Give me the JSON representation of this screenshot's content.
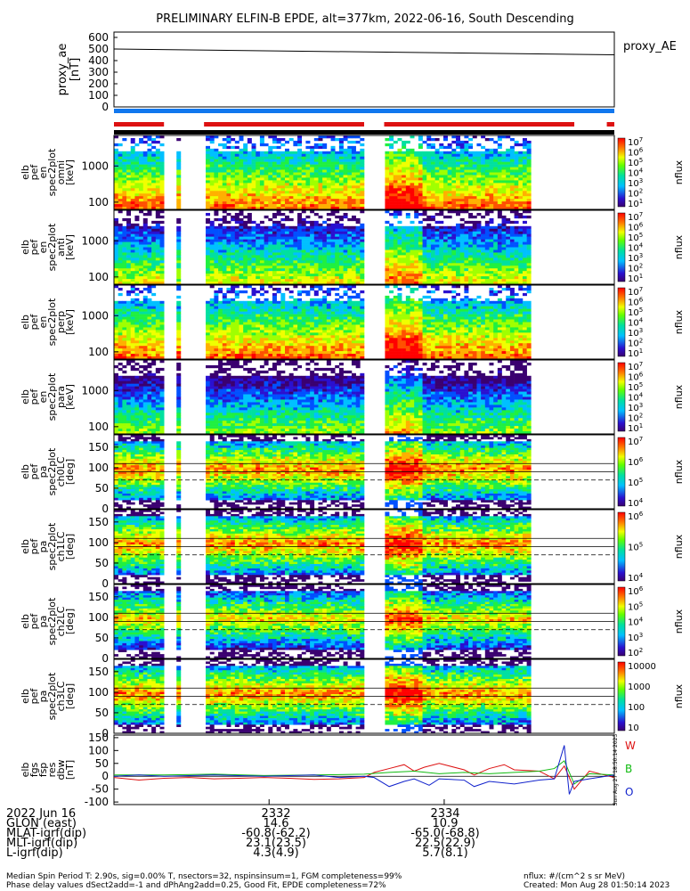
{
  "title": "PRELIMINARY ELFIN-B EPDE, alt=377km, 2022-06-16, South Descending",
  "colors": {
    "red": "#dd1111",
    "blue": "#1177ee",
    "green": "#11bb11",
    "black": "#000000"
  },
  "chart_data": [
    {
      "type": "line",
      "name": "proxy_ae",
      "ylabel": [
        "proxy_ae",
        "[nT]"
      ],
      "ylim": [
        0,
        600
      ],
      "yticks": [
        "0",
        "100",
        "200",
        "300",
        "400",
        "500",
        "600"
      ],
      "series": [
        {
          "name": "proxy_AE",
          "x": [
            0,
            1
          ],
          "values": [
            500,
            450
          ]
        }
      ],
      "legend": "proxy_AE"
    },
    {
      "type": "bar",
      "name": "data-coverage-bars",
      "categories": [
        "red-1",
        "red-2",
        "red-3",
        "red-4"
      ],
      "segments": {
        "red": [
          [
            0.0,
            0.1
          ],
          [
            0.18,
            0.5
          ],
          [
            0.54,
            0.92
          ],
          [
            0.985,
            1.0
          ]
        ],
        "blue": [
          [
            0.0,
            1.0
          ]
        ]
      }
    },
    {
      "type": "heatmap",
      "name": "elb pef en spec2plot omni",
      "ylabel": [
        "elb",
        "pef",
        "en",
        "spec2plot",
        "omni",
        "[keV]"
      ],
      "yticks": [
        "1000",
        "100"
      ],
      "ylim": [
        63,
        7000
      ],
      "zlabel": "nflux",
      "zticks": [
        "10^7",
        "10^6",
        "10^5",
        "10^4",
        "10^3",
        "10^2",
        "10^1"
      ]
    },
    {
      "type": "heatmap",
      "name": "elb pef en spec2plot anti",
      "ylabel": [
        "elb",
        "pef",
        "en",
        "spec2plot",
        "anti",
        "[keV]"
      ],
      "yticks": [
        "1000",
        "100"
      ],
      "ylim": [
        63,
        7000
      ],
      "zlabel": "nflux",
      "zticks": [
        "10^7",
        "10^6",
        "10^5",
        "10^4",
        "10^3",
        "10^2",
        "10^1"
      ]
    },
    {
      "type": "heatmap",
      "name": "elb pef en spec2plot perp",
      "ylabel": [
        "elb",
        "pef",
        "en",
        "spec2plot",
        "perp",
        "[keV]"
      ],
      "yticks": [
        "1000",
        "100"
      ],
      "ylim": [
        63,
        7000
      ],
      "zlabel": "nflux",
      "zticks": [
        "10^7",
        "10^6",
        "10^5",
        "10^4",
        "10^3",
        "10^2",
        "10^1"
      ]
    },
    {
      "type": "heatmap",
      "name": "elb pef en spec2plot para",
      "ylabel": [
        "elb",
        "pef",
        "en",
        "spec2plot",
        "para",
        "[keV]"
      ],
      "yticks": [
        "1000",
        "100"
      ],
      "ylim": [
        63,
        7000
      ],
      "zlabel": "nflux",
      "zticks": [
        "10^7",
        "10^6",
        "10^5",
        "10^4",
        "10^3",
        "10^2",
        "10^1"
      ]
    },
    {
      "type": "heatmap",
      "name": "elb pef pa spec2plot ch0LC",
      "ylabel": [
        "elb",
        "pef",
        "pa",
        "spec2plot",
        "ch0LC",
        "[deg]"
      ],
      "yticks": [
        "150",
        "100",
        "50",
        "0"
      ],
      "ylim": [
        0,
        180
      ],
      "zlabel": "nflux",
      "zticks": [
        "10^7",
        "10^6",
        "10^5",
        "10^4"
      ],
      "lines": [
        110,
        90,
        70
      ]
    },
    {
      "type": "heatmap",
      "name": "elb pef pa spec2plot ch1LC",
      "ylabel": [
        "elb",
        "pef",
        "pa",
        "spec2plot",
        "ch1LC",
        "[deg]"
      ],
      "yticks": [
        "150",
        "100",
        "50",
        "0"
      ],
      "ylim": [
        0,
        180
      ],
      "zlabel": "nflux",
      "zticks": [
        "10^6",
        "10^5",
        "10^4"
      ],
      "lines": [
        110,
        90,
        70
      ]
    },
    {
      "type": "heatmap",
      "name": "elb pef pa spec2plot ch2LC",
      "ylabel": [
        "elb",
        "pef",
        "pa",
        "spec2plot",
        "ch2LC",
        "[deg]"
      ],
      "yticks": [
        "150",
        "100",
        "50",
        "0"
      ],
      "ylim": [
        0,
        180
      ],
      "zlabel": "nflux",
      "zticks": [
        "10^6",
        "10^5",
        "10^4",
        "10^3",
        "10^2"
      ],
      "lines": [
        110,
        90,
        70
      ]
    },
    {
      "type": "heatmap",
      "name": "elb pef pa spec2plot ch3LC",
      "ylabel": [
        "elb",
        "pef",
        "pa",
        "spec2plot",
        "ch3LC",
        "[deg]"
      ],
      "yticks": [
        "150",
        "100",
        "50",
        "0"
      ],
      "ylim": [
        0,
        180
      ],
      "zlabel": "nflux",
      "zticks": [
        "10000",
        "1000",
        "100",
        "10"
      ],
      "lines": [
        110,
        90,
        70
      ]
    },
    {
      "type": "line",
      "name": "elb fgs fsp res dbw",
      "ylabel": [
        "elb",
        "fgs",
        "fsp",
        "res",
        "dbw",
        "[nT]"
      ],
      "ylim": [
        -110,
        160
      ],
      "yticks": [
        "150",
        "100",
        "50",
        "0",
        "-50",
        "-100"
      ],
      "legend": [
        "W",
        "B",
        "O"
      ],
      "series": [
        {
          "name": "W",
          "color": "#dd1111",
          "x": [
            0,
            0.05,
            0.1,
            0.15,
            0.2,
            0.25,
            0.3,
            0.35,
            0.4,
            0.45,
            0.5,
            0.52,
            0.55,
            0.58,
            0.6,
            0.62,
            0.65,
            0.7,
            0.72,
            0.75,
            0.78,
            0.8,
            0.85,
            0.88,
            0.9,
            0.92,
            0.95,
            1.0
          ],
          "values": [
            -5,
            -15,
            -8,
            -5,
            -10,
            -8,
            -5,
            -8,
            -12,
            -10,
            -5,
            15,
            30,
            45,
            20,
            35,
            50,
            25,
            5,
            30,
            45,
            25,
            20,
            -10,
            40,
            -50,
            20,
            -5
          ]
        },
        {
          "name": "B",
          "color": "#11bb11",
          "x": [
            0,
            0.1,
            0.2,
            0.3,
            0.4,
            0.5,
            0.55,
            0.6,
            0.65,
            0.7,
            0.75,
            0.8,
            0.85,
            0.88,
            0.9,
            0.92,
            0.95,
            1.0
          ],
          "values": [
            5,
            5,
            8,
            3,
            5,
            8,
            15,
            20,
            10,
            15,
            10,
            15,
            20,
            30,
            60,
            -30,
            10,
            5
          ]
        },
        {
          "name": "O",
          "color": "#1122cc",
          "x": [
            0,
            0.05,
            0.1,
            0.2,
            0.3,
            0.4,
            0.45,
            0.5,
            0.52,
            0.55,
            0.58,
            0.6,
            0.63,
            0.65,
            0.7,
            0.72,
            0.75,
            0.8,
            0.85,
            0.88,
            0.9,
            0.91,
            0.92,
            0.95,
            1.0
          ],
          "values": [
            0,
            5,
            0,
            5,
            0,
            5,
            -5,
            0,
            -5,
            -40,
            -20,
            -10,
            -35,
            -10,
            -15,
            -40,
            -20,
            -30,
            -15,
            -10,
            120,
            -70,
            -20,
            -10,
            5
          ]
        }
      ]
    }
  ],
  "footer": {
    "labels": [
      "2022 Jun 16",
      "GLON (east)",
      "MLAT-igrf(dip)",
      "MLT-igrf(dip)",
      "L-igrf(dip)"
    ],
    "col1": [
      "2332",
      "14.6",
      "-60.8(-62.2)",
      "23.1(23.5)",
      "4.3(4.9)"
    ],
    "col2": [
      "2334",
      "10.9",
      "-65.0(-68.8)",
      "22.5(22.9)",
      "5.7(8.1)"
    ],
    "note1": "Median Spin Period T: 2.90s, sig=0.00% T, nsectors=32, nspinsinsum=1, FGM completeness=99%",
    "note2": "Phase delay values dSect2add=-1 and dPhAng2add=0.25, Good Fit, EPDE completeness=72%",
    "units": "nflux: #/(cm^2 s sr MeV)",
    "created": "Created: Mon Aug 28 01:50:14 2023",
    "side_stamp": "Sun Aug 27 18:50:14 2023"
  }
}
